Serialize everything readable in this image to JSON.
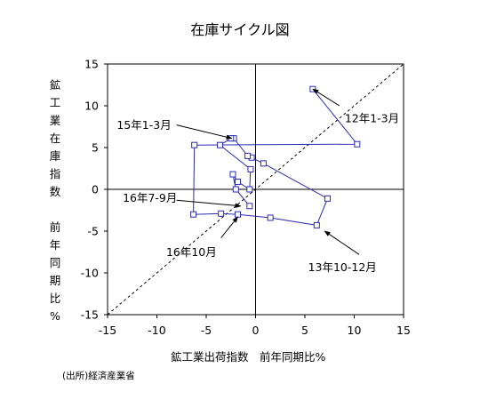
{
  "chart_data": {
    "type": "scatter",
    "title": "在庫サイクル図",
    "xlabel": "鉱工業出荷指数　前年同期比%",
    "ylabel": "鉱工業在庫指数　前年同期比%",
    "xlim": [
      -15,
      15
    ],
    "ylim": [
      -15,
      15
    ],
    "xticks": [
      -15,
      -10,
      -5,
      0,
      5,
      10,
      15
    ],
    "yticks": [
      -15,
      -10,
      -5,
      0,
      5,
      10,
      15
    ],
    "grid": false,
    "reference_line": {
      "style": "dashed",
      "from": [
        -15,
        -15
      ],
      "to": [
        15,
        15
      ]
    },
    "series": [
      {
        "color": "#2b2bb0",
        "marker": "open-square",
        "points": [
          {
            "x": 5.8,
            "y": 12.0
          },
          {
            "x": 10.3,
            "y": 5.4
          },
          {
            "x": -6.2,
            "y": 5.3
          },
          {
            "x": -6.3,
            "y": -3.0
          },
          {
            "x": -3.5,
            "y": -2.9
          },
          {
            "x": -1.8,
            "y": -3.0
          },
          {
            "x": 1.5,
            "y": -3.4
          },
          {
            "x": 6.2,
            "y": -4.3
          },
          {
            "x": 7.3,
            "y": -1.1
          },
          {
            "x": 0.8,
            "y": 3.1
          },
          {
            "x": -0.4,
            "y": 3.8
          },
          {
            "x": -0.8,
            "y": 4.0
          },
          {
            "x": -2.2,
            "y": 6.1
          },
          {
            "x": -2.5,
            "y": 6.1
          },
          {
            "x": -3.6,
            "y": 5.3
          },
          {
            "x": -0.5,
            "y": 2.4
          },
          {
            "x": -0.6,
            "y": 0.0
          },
          {
            "x": -1.8,
            "y": 0.9
          },
          {
            "x": -2.3,
            "y": 1.8
          },
          {
            "x": -2.0,
            "y": 0.0
          },
          {
            "x": -0.6,
            "y": -2.0
          }
        ]
      }
    ],
    "annotations": [
      {
        "text": "12年1-3月",
        "point": [
          5.8,
          12.0
        ],
        "label_at": [
          11.8,
          8.5
        ],
        "arrow_from": [
          8.5,
          10.0
        ]
      },
      {
        "text": "15年1-3月",
        "point": [
          -2.4,
          6.1
        ],
        "label_at": [
          -11.3,
          7.7
        ],
        "arrow_from": [
          -8.0,
          7.7
        ]
      },
      {
        "text": "16年7-9月",
        "point": [
          -1.5,
          -2.0
        ],
        "label_at": [
          -10.7,
          -1.0
        ],
        "arrow_from": [
          -8.0,
          -1.3
        ]
      },
      {
        "text": "16年10月",
        "point": [
          -1.8,
          -3.3
        ],
        "label_at": [
          -6.5,
          -7.5
        ],
        "arrow_from": [
          -3.5,
          -5.8
        ]
      },
      {
        "text": "13年10-12月",
        "point": [
          7.0,
          -5.0
        ],
        "label_at": [
          8.8,
          -9.3
        ],
        "arrow_from": [
          10.5,
          -7.8
        ]
      }
    ],
    "source": "(出所)経済産業省"
  }
}
